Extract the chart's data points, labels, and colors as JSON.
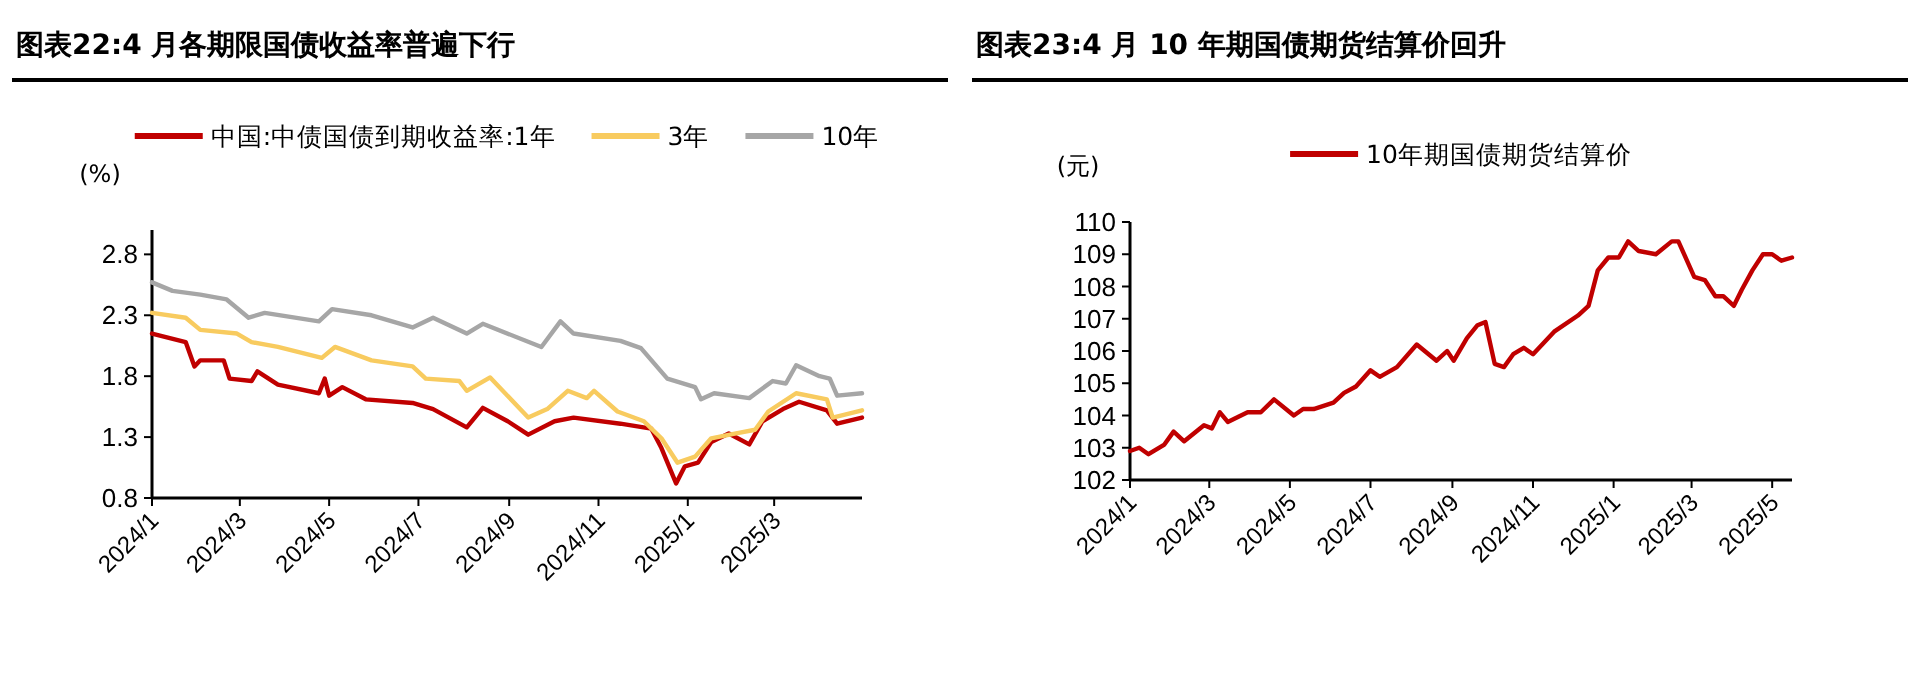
{
  "chart_data": [
    {
      "type": "line",
      "title": "图表22:4 月各期限国债收益率普遍下行",
      "ylabel": "(%)",
      "legend": "top",
      "grid": false,
      "marker": "none",
      "line_style": "solid",
      "xlim": [
        "2024-01-01",
        "2025-04-30"
      ],
      "ylim": [
        0.8,
        3.0
      ],
      "xticks": [
        {
          "value": "2024-01-01",
          "label": "2024/1"
        },
        {
          "value": "2024-03-01",
          "label": "2024/3"
        },
        {
          "value": "2024-05-01",
          "label": "2024/5"
        },
        {
          "value": "2024-07-01",
          "label": "2024/7"
        },
        {
          "value": "2024-09-01",
          "label": "2024/9"
        },
        {
          "value": "2024-11-01",
          "label": "2024/11"
        },
        {
          "value": "2025-01-01",
          "label": "2025/1"
        },
        {
          "value": "2025-03-01",
          "label": "2025/3"
        }
      ],
      "yticks": [
        0.8,
        1.3,
        1.8,
        2.3,
        2.8
      ],
      "series": [
        {
          "name": "中国:中债国债到期收益率:1年",
          "color": "#c00000",
          "x": [
            "2024-01-01",
            "2024-01-24",
            "2024-01-30",
            "2024-02-03",
            "2024-02-19",
            "2024-02-23",
            "2024-03-09",
            "2024-03-13",
            "2024-03-27",
            "2024-04-24",
            "2024-04-28",
            "2024-05-01",
            "2024-05-10",
            "2024-05-26",
            "2024-06-27",
            "2024-07-11",
            "2024-08-03",
            "2024-08-14",
            "2024-08-31",
            "2024-09-14",
            "2024-10-02",
            "2024-10-15",
            "2024-11-16",
            "2024-12-07",
            "2024-12-14",
            "2024-12-24",
            "2024-12-30",
            "2025-01-08",
            "2025-01-17",
            "2025-01-29",
            "2025-02-12",
            "2025-02-21",
            "2025-03-07",
            "2025-03-18",
            "2025-04-06",
            "2025-04-13",
            "2025-04-30"
          ],
          "values": [
            2.15,
            2.08,
            1.88,
            1.93,
            1.93,
            1.78,
            1.76,
            1.84,
            1.73,
            1.66,
            1.78,
            1.64,
            1.71,
            1.61,
            1.58,
            1.53,
            1.38,
            1.54,
            1.43,
            1.32,
            1.43,
            1.46,
            1.41,
            1.37,
            1.21,
            0.92,
            1.06,
            1.09,
            1.26,
            1.33,
            1.24,
            1.43,
            1.53,
            1.59,
            1.52,
            1.41,
            1.46
          ]
        },
        {
          "name": "3年",
          "color": "#f8cb5f",
          "x": [
            "2024-01-01",
            "2024-01-24",
            "2024-02-03",
            "2024-02-28",
            "2024-03-09",
            "2024-03-27",
            "2024-04-26",
            "2024-05-05",
            "2024-05-30",
            "2024-06-27",
            "2024-07-06",
            "2024-07-29",
            "2024-08-03",
            "2024-08-19",
            "2024-09-14",
            "2024-09-27",
            "2024-10-11",
            "2024-10-24",
            "2024-10-29",
            "2024-11-14",
            "2024-12-02",
            "2024-12-14",
            "2024-12-25",
            "2025-01-06",
            "2025-01-17",
            "2025-02-03",
            "2025-02-16",
            "2025-02-25",
            "2025-03-16",
            "2025-04-06",
            "2025-04-10",
            "2025-04-30"
          ],
          "values": [
            2.32,
            2.28,
            2.18,
            2.15,
            2.08,
            2.04,
            1.95,
            2.04,
            1.93,
            1.88,
            1.78,
            1.76,
            1.68,
            1.79,
            1.46,
            1.53,
            1.68,
            1.62,
            1.68,
            1.51,
            1.43,
            1.29,
            1.09,
            1.14,
            1.29,
            1.33,
            1.36,
            1.51,
            1.66,
            1.61,
            1.46,
            1.52
          ]
        },
        {
          "name": "10年",
          "color": "#a6a6a6",
          "x": [
            "2024-01-01",
            "2024-01-15",
            "2024-02-03",
            "2024-02-21",
            "2024-03-07",
            "2024-03-18",
            "2024-04-24",
            "2024-05-03",
            "2024-05-30",
            "2024-06-27",
            "2024-07-11",
            "2024-08-03",
            "2024-08-14",
            "2024-09-23",
            "2024-10-06",
            "2024-10-15",
            "2024-11-16",
            "2024-11-30",
            "2024-12-18",
            "2025-01-06",
            "2025-01-10",
            "2025-01-19",
            "2025-02-12",
            "2025-02-28",
            "2025-03-09",
            "2025-03-16",
            "2025-04-01",
            "2025-04-08",
            "2025-04-13",
            "2025-04-30"
          ],
          "values": [
            2.57,
            2.5,
            2.47,
            2.43,
            2.28,
            2.32,
            2.25,
            2.35,
            2.3,
            2.2,
            2.28,
            2.15,
            2.23,
            2.04,
            2.25,
            2.15,
            2.09,
            2.03,
            1.78,
            1.71,
            1.61,
            1.66,
            1.62,
            1.76,
            1.74,
            1.89,
            1.8,
            1.78,
            1.64,
            1.66
          ]
        }
      ]
    },
    {
      "type": "line",
      "title": "图表23:4 月 10 年期国债期货结算价回升",
      "ylabel": "(元)",
      "legend": "top",
      "grid": false,
      "marker": "none",
      "line_style": "solid",
      "xlim": [
        "2024-01-01",
        "2025-05-16"
      ],
      "ylim": [
        102,
        110
      ],
      "xticks": [
        {
          "value": "2024-01-01",
          "label": "2024/1"
        },
        {
          "value": "2024-03-01",
          "label": "2024/3"
        },
        {
          "value": "2024-05-01",
          "label": "2024/5"
        },
        {
          "value": "2024-07-01",
          "label": "2024/7"
        },
        {
          "value": "2024-09-01",
          "label": "2024/9"
        },
        {
          "value": "2024-11-01",
          "label": "2024/11"
        },
        {
          "value": "2025-01-01",
          "label": "2025/1"
        },
        {
          "value": "2025-03-01",
          "label": "2025/3"
        },
        {
          "value": "2025-05-01",
          "label": "2025/5"
        }
      ],
      "yticks": [
        102,
        103,
        104,
        105,
        106,
        107,
        108,
        109,
        110
      ],
      "series": [
        {
          "name": "10年期国债期货结算价",
          "color": "#c00000",
          "x": [
            "2024-01-01",
            "2024-01-08",
            "2024-01-15",
            "2024-01-27",
            "2024-02-03",
            "2024-02-11",
            "2024-02-26",
            "2024-03-03",
            "2024-03-09",
            "2024-03-15",
            "2024-03-30",
            "2024-04-09",
            "2024-04-19",
            "2024-05-04",
            "2024-05-11",
            "2024-05-19",
            "2024-06-03",
            "2024-06-11",
            "2024-06-20",
            "2024-07-01",
            "2024-07-08",
            "2024-07-21",
            "2024-08-05",
            "2024-08-20",
            "2024-08-28",
            "2024-09-02",
            "2024-09-12",
            "2024-09-20",
            "2024-09-26",
            "2024-10-03",
            "2024-10-10",
            "2024-10-17",
            "2024-10-25",
            "2024-11-01",
            "2024-11-17",
            "2024-12-05",
            "2024-12-13",
            "2024-12-20",
            "2024-12-28",
            "2025-01-05",
            "2025-01-12",
            "2025-01-20",
            "2025-02-02",
            "2025-02-14",
            "2025-02-19",
            "2025-03-03",
            "2025-03-11",
            "2025-03-19",
            "2025-03-25",
            "2025-04-02",
            "2025-04-08",
            "2025-04-16",
            "2025-04-24",
            "2025-05-01",
            "2025-05-08",
            "2025-05-16"
          ],
          "values": [
            102.9,
            103.0,
            102.8,
            103.1,
            103.5,
            103.2,
            103.7,
            103.6,
            104.1,
            103.8,
            104.1,
            104.1,
            104.5,
            104.0,
            104.2,
            104.2,
            104.4,
            104.7,
            104.9,
            105.4,
            105.2,
            105.5,
            106.2,
            105.7,
            106.0,
            105.7,
            106.4,
            106.8,
            106.9,
            105.6,
            105.5,
            105.9,
            106.1,
            105.9,
            106.6,
            107.1,
            107.4,
            108.5,
            108.9,
            108.9,
            109.4,
            109.1,
            109.0,
            109.4,
            109.4,
            108.3,
            108.2,
            107.7,
            107.7,
            107.4,
            107.9,
            108.5,
            109.0,
            109.0,
            108.8,
            108.9
          ]
        }
      ]
    }
  ]
}
